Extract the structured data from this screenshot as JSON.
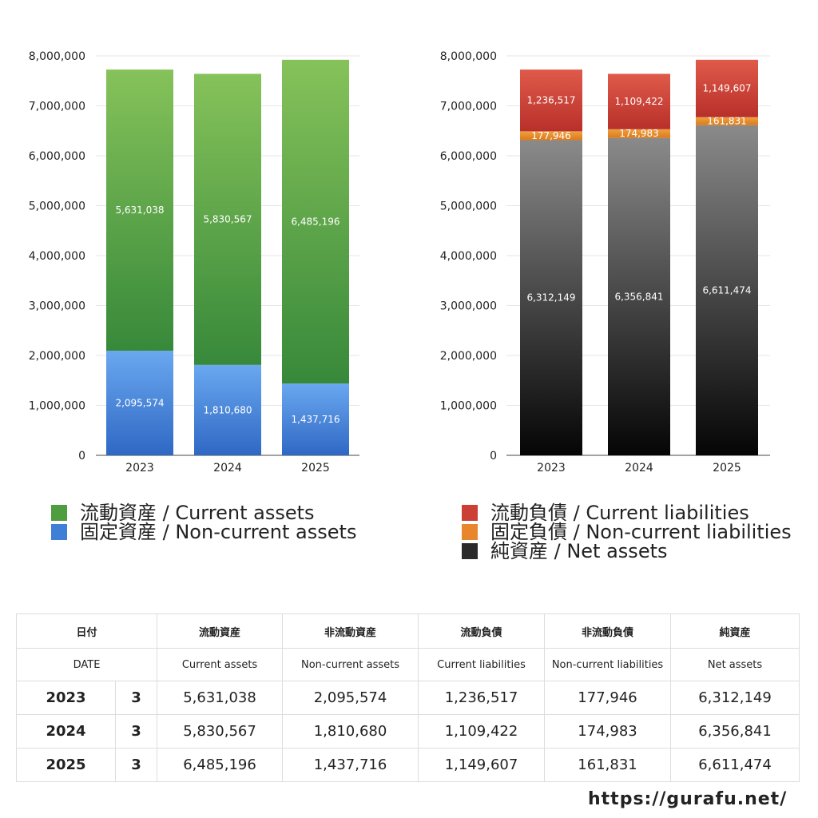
{
  "chart_data": [
    {
      "type": "bar",
      "stacked": true,
      "categories": [
        "2023",
        "2024",
        "2025"
      ],
      "ylim": [
        0,
        8000000
      ],
      "yticks": [
        0,
        1000000,
        2000000,
        3000000,
        4000000,
        5000000,
        6000000,
        7000000,
        8000000
      ],
      "ytick_labels": [
        "0",
        "1,000,000",
        "2,000,000",
        "3,000,000",
        "4,000,000",
        "5,000,000",
        "6,000,000",
        "7,000,000",
        "8,000,000"
      ],
      "grid": true,
      "series": [
        {
          "name": "固定資産 / Non-current assets",
          "values": [
            2095574,
            1810680,
            1437716
          ],
          "labels": [
            "2,095,574",
            "1,810,680",
            "1,437,716"
          ],
          "color_top": "#6aa8f0",
          "color_bottom": "#2f68c4"
        },
        {
          "name": "流動資産 / Current assets",
          "values": [
            5631038,
            5830567,
            6485196
          ],
          "labels": [
            "5,631,038",
            "5,830,567",
            "6,485,196"
          ],
          "color_top": "#86c25a",
          "color_bottom": "#37893a"
        }
      ]
    },
    {
      "type": "bar",
      "stacked": true,
      "categories": [
        "2023",
        "2024",
        "2025"
      ],
      "ylim": [
        0,
        8000000
      ],
      "yticks": [
        0,
        1000000,
        2000000,
        3000000,
        4000000,
        5000000,
        6000000,
        7000000,
        8000000
      ],
      "ytick_labels": [
        "0",
        "1,000,000",
        "2,000,000",
        "3,000,000",
        "4,000,000",
        "5,000,000",
        "6,000,000",
        "7,000,000",
        "8,000,000"
      ],
      "grid": true,
      "series": [
        {
          "name": "純資産 / Net assets",
          "values": [
            6312149,
            6356841,
            6611474
          ],
          "labels": [
            "6,312,149",
            "6,356,841",
            "6,611,474"
          ],
          "color_top": "#8a8a8a",
          "color_bottom": "#050505"
        },
        {
          "name": "固定負債 / Non-current liabilities",
          "values": [
            177946,
            174983,
            161831
          ],
          "labels": [
            "177,946",
            "174,983",
            "161,831"
          ],
          "color_top": "#f0a040",
          "color_bottom": "#d97a1c"
        },
        {
          "name": "流動負債 / Current liabilities",
          "values": [
            1236517,
            1109422,
            1149607
          ],
          "labels": [
            "1,236,517",
            "1,109,422",
            "1,149,607"
          ],
          "color_top": "#e05a4a",
          "color_bottom": "#b8302a"
        }
      ]
    }
  ],
  "legend_left": [
    {
      "label": "流動資産 / Current assets",
      "color": "#4e9e3f"
    },
    {
      "label": "固定資産 / Non-current assets",
      "color": "#3f7fd6"
    }
  ],
  "legend_right": [
    {
      "label": "流動負債 / Current liabilities",
      "color": "#cc3f35"
    },
    {
      "label": "固定負債 / Non-current liabilities",
      "color": "#e8862c"
    },
    {
      "label": "純資産 / Net assets",
      "color": "#2a2a2a"
    }
  ],
  "table": {
    "header_jp": [
      "日付",
      "流動資産",
      "非流動資産",
      "流動負債",
      "非流動負債",
      "純資産"
    ],
    "header_en": [
      "DATE",
      "Current assets",
      "Non-current assets",
      "Current liabilities",
      "Non-current liabilities",
      "Net assets"
    ],
    "rows": [
      {
        "year": "2023",
        "month": "3",
        "values": [
          "5,631,038",
          "2,095,574",
          "1,236,517",
          "177,946",
          "6,312,149"
        ]
      },
      {
        "year": "2024",
        "month": "3",
        "values": [
          "5,830,567",
          "1,810,680",
          "1,109,422",
          "174,983",
          "6,356,841"
        ]
      },
      {
        "year": "2025",
        "month": "3",
        "values": [
          "6,485,196",
          "1,437,716",
          "1,149,607",
          "161,831",
          "6,611,474"
        ]
      }
    ]
  },
  "footer_url": "https://gurafu.net/"
}
